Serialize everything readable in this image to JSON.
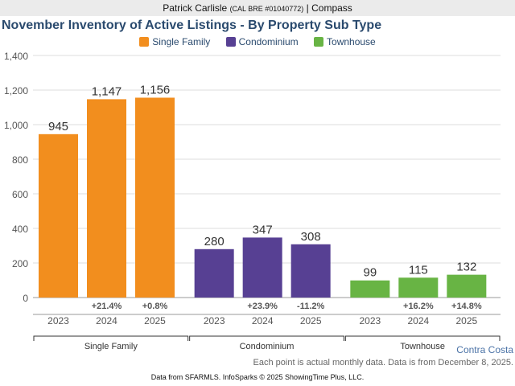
{
  "header": {
    "name": "Patrick Carlisle",
    "license": "(CAL BRE #01040772)",
    "separator": "|",
    "company": "Compass"
  },
  "chart_data": {
    "type": "bar",
    "title": "November Inventory of Active Listings - By Property Sub Type",
    "ylim": [
      0,
      1400
    ],
    "yticks": [
      "0",
      "200",
      "400",
      "600",
      "800",
      "1,000",
      "1,200",
      "1,400"
    ],
    "grid": true,
    "legend_position": "top",
    "groups": [
      {
        "name": "Single Family",
        "color": "#f28e1e",
        "categories": [
          "2023",
          "2024",
          "2025"
        ],
        "values": [
          945,
          1147,
          1156
        ],
        "labels": [
          "945",
          "1,147",
          "1,156"
        ],
        "changes": [
          "",
          "+21.4%",
          "+0.8%"
        ]
      },
      {
        "name": "Condominium",
        "color": "#574093",
        "categories": [
          "2023",
          "2024",
          "2025"
        ],
        "values": [
          280,
          347,
          308
        ],
        "labels": [
          "280",
          "347",
          "308"
        ],
        "changes": [
          "",
          "+23.9%",
          "-11.2%"
        ]
      },
      {
        "name": "Townhouse",
        "color": "#68b444",
        "categories": [
          "2023",
          "2024",
          "2025"
        ],
        "values": [
          99,
          115,
          132
        ],
        "labels": [
          "99",
          "115",
          "132"
        ],
        "changes": [
          "",
          "+16.2%",
          "+14.8%"
        ]
      }
    ]
  },
  "footer": {
    "region": "Contra Costa",
    "note": "Each point is actual monthly data. Data is from December 8, 2025.",
    "source": "Data from SFARMLS. InfoSparks © 2025 ShowingTime Plus, LLC."
  }
}
